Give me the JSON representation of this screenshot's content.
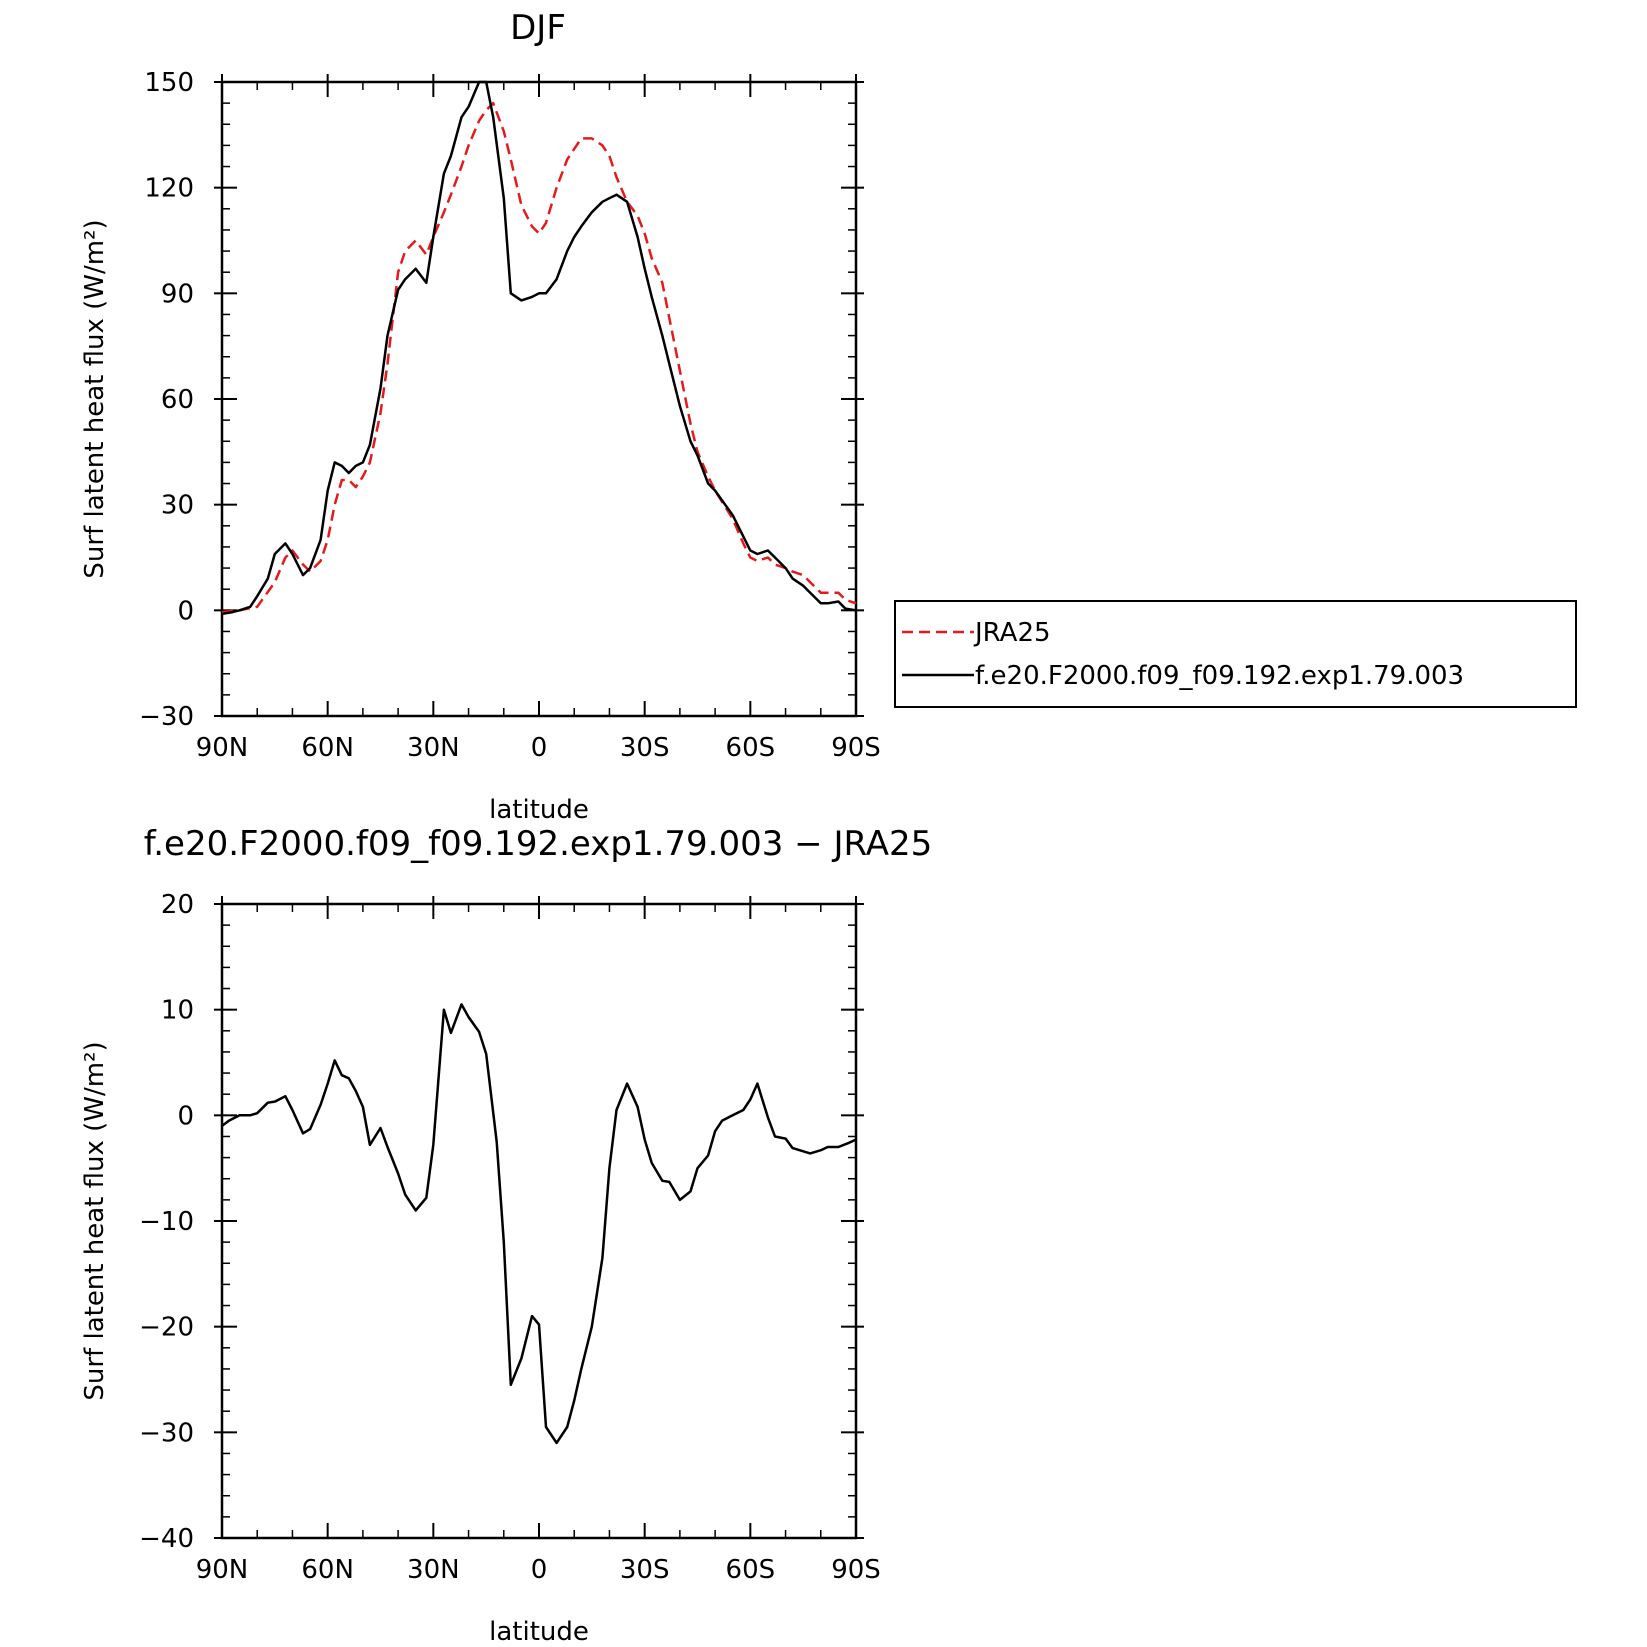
{
  "chart_data": [
    {
      "type": "line",
      "title": "DJF",
      "xlabel": "latitude",
      "ylabel": "Surf latent heat flux (W/m²)",
      "xlim": [
        90,
        -90
      ],
      "ylim": [
        -30,
        150
      ],
      "x_ticks": [
        90,
        60,
        30,
        0,
        -30,
        -60,
        -90
      ],
      "x_tick_labels": [
        "90N",
        "60N",
        "30N",
        "0",
        "30S",
        "60S",
        "90S"
      ],
      "y_ticks": [
        -30,
        0,
        30,
        60,
        90,
        120,
        150
      ],
      "y_tick_labels": [
        "−30",
        "0",
        "30",
        "60",
        "90",
        "120",
        "150"
      ],
      "grid": false,
      "legend": "right",
      "series": [
        {
          "name": "JRA25",
          "color": "#e41a1c",
          "dash": "dashed",
          "x": [
            90,
            85,
            80,
            75,
            72,
            70,
            67,
            65,
            62,
            60,
            58,
            56,
            54,
            52,
            50,
            48,
            45,
            43,
            40,
            38,
            35,
            32,
            30,
            27,
            25,
            22,
            20,
            17,
            15,
            13,
            10,
            8,
            5,
            2,
            0,
            -2,
            -5,
            -8,
            -10,
            -12,
            -15,
            -18,
            -20,
            -22,
            -25,
            -28,
            -30,
            -32,
            -35,
            -37,
            -40,
            -43,
            -45,
            -48,
            -50,
            -55,
            -58,
            -60,
            -62,
            -65,
            -67,
            -70,
            -72,
            -75,
            -77,
            -80,
            -82,
            -85,
            -87,
            -90
          ],
          "y": [
            -0.5,
            0,
            1,
            8,
            15,
            17,
            13,
            11,
            14,
            20,
            30,
            37,
            37,
            35,
            38,
            42,
            56,
            70,
            96,
            102,
            105,
            101,
            106,
            113,
            118,
            126,
            132,
            139,
            142,
            144,
            136,
            128,
            115,
            109,
            107,
            110,
            120,
            128,
            131,
            134,
            134,
            132,
            129,
            123,
            116,
            112,
            107,
            100,
            93,
            83,
            68,
            53,
            45,
            38,
            34,
            26,
            19,
            15,
            14,
            15,
            13,
            12,
            11,
            10,
            8,
            5,
            5,
            5,
            3,
            2
          ]
        },
        {
          "name": "f.e20.F2000.f09_f09.192.exp1.79.003",
          "color": "#000000",
          "dash": "solid",
          "x": [
            90,
            87,
            85,
            82,
            80,
            77,
            75,
            72,
            70,
            67,
            65,
            62,
            60,
            58,
            56,
            54,
            52,
            50,
            48,
            45,
            43,
            40,
            38,
            35,
            32,
            30,
            27,
            25,
            22,
            20,
            17,
            15,
            13,
            10,
            8,
            5,
            2,
            0,
            -2,
            -5,
            -8,
            -10,
            -12,
            -15,
            -18,
            -20,
            -22,
            -25,
            -28,
            -30,
            -32,
            -35,
            -37,
            -40,
            -43,
            -45,
            -48,
            -50,
            -55,
            -58,
            -60,
            -62,
            -65,
            -67,
            -70,
            -72,
            -75,
            -77,
            -80,
            -82,
            -85,
            -87,
            -90
          ],
          "y": [
            -1,
            -0.5,
            0,
            1,
            4,
            9,
            16,
            19,
            16,
            10,
            12,
            20,
            34,
            42,
            41,
            39,
            41,
            42,
            47,
            63,
            78,
            91,
            94,
            97,
            93,
            106,
            124,
            129,
            140,
            143,
            150,
            150,
            140,
            117,
            90,
            88,
            89,
            90,
            90,
            94,
            102,
            106,
            109,
            113,
            116,
            117,
            118,
            116,
            106,
            97,
            89,
            78,
            70,
            58,
            48,
            44,
            36,
            34,
            27,
            21,
            17,
            16,
            17,
            15,
            12,
            9,
            7,
            5,
            2,
            2,
            2.5,
            0.5,
            0
          ]
        }
      ]
    },
    {
      "type": "line",
      "title": "f.e20.F2000.f09_f09.192.exp1.79.003 − JRA25",
      "xlabel": "latitude",
      "ylabel": "Surf latent heat flux (W/m²)",
      "xlim": [
        90,
        -90
      ],
      "ylim": [
        -40,
        20
      ],
      "x_ticks": [
        90,
        60,
        30,
        0,
        -30,
        -60,
        -90
      ],
      "x_tick_labels": [
        "90N",
        "60N",
        "30N",
        "0",
        "30S",
        "60S",
        "90S"
      ],
      "y_ticks": [
        -40,
        -30,
        -20,
        -10,
        0,
        10,
        20
      ],
      "y_tick_labels": [
        "−40",
        "−30",
        "−20",
        "−10",
        "0",
        "10",
        "20"
      ],
      "grid": false,
      "series": [
        {
          "color": "#000000",
          "dash": "solid",
          "x": [
            90,
            88,
            85,
            82,
            80,
            77,
            75,
            72,
            70,
            67,
            65,
            62,
            60,
            58,
            56,
            54,
            52,
            50,
            48,
            45,
            43,
            40,
            38,
            35,
            32,
            30,
            27,
            25,
            22,
            20,
            17,
            15,
            12,
            10,
            8,
            5,
            2,
            0,
            -2,
            -5,
            -8,
            -10,
            -12,
            -15,
            -18,
            -20,
            -22,
            -25,
            -28,
            -30,
            -32,
            -35,
            -37,
            -40,
            -43,
            -45,
            -48,
            -50,
            -52,
            -55,
            -58,
            -60,
            -62,
            -65,
            -67,
            -70,
            -72,
            -75,
            -77,
            -80,
            -82,
            -85,
            -88,
            -90
          ],
          "y": [
            -1,
            -0.5,
            0,
            0,
            0.2,
            1.2,
            1.3,
            1.8,
            0.5,
            -1.7,
            -1.3,
            1,
            3,
            5.2,
            3.8,
            3.5,
            2.3,
            0.8,
            -2.8,
            -1.2,
            -3,
            -5.5,
            -7.5,
            -9,
            -7.8,
            -2.8,
            10,
            7.8,
            10.5,
            9.3,
            7.9,
            5.8,
            -2.5,
            -12,
            -25.5,
            -23,
            -19,
            -19.8,
            -29.5,
            -31,
            -29.5,
            -27,
            -24,
            -20,
            -13.5,
            -5,
            0.5,
            3,
            0.8,
            -2.3,
            -4.5,
            -6.2,
            -6.3,
            -8,
            -7.2,
            -5,
            -3.8,
            -1.5,
            -0.5,
            0,
            0.5,
            1.5,
            3,
            -0.2,
            -2,
            -2.2,
            -3.1,
            -3.4,
            -3.6,
            -3.3,
            -3,
            -3,
            -2.6,
            -2.3
          ]
        }
      ]
    }
  ]
}
